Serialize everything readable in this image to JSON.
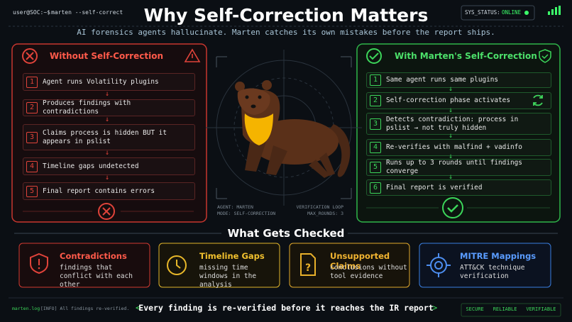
{
  "header": {
    "prompt": "user@SOC:~$",
    "command": "marten --self-correct",
    "title": "Why Self-Correction Matters",
    "status_label": "SYS_STATUS:",
    "status_value": "ONLINE",
    "subtitle": "AI forensics agents hallucinate. Marten catches its own mistakes before the report ships."
  },
  "left_panel": {
    "title": "Without Self-Correction",
    "steps": [
      {
        "number": "1",
        "text": "Agent runs Volatility plugins"
      },
      {
        "number": "2",
        "text": "Produces findings with contradictions"
      },
      {
        "number": "3",
        "text": "Claims process is hidden BUT it appears in pslist"
      },
      {
        "number": "4",
        "text": "Timeline gaps undetected"
      },
      {
        "number": "5",
        "text": "Final report contains errors"
      }
    ]
  },
  "right_panel": {
    "title": "With Marten's Self-Correction",
    "steps": [
      {
        "number": "1",
        "text": "Same agent runs same plugins"
      },
      {
        "number": "2",
        "text": "Self-correction phase activates"
      },
      {
        "number": "3",
        "text": "Detects contradiction: process in pslist → not truly hidden"
      },
      {
        "number": "4",
        "text": "Re-verifies with malfind + vadinfo"
      },
      {
        "number": "5",
        "text": "Runs up to 3 rounds until findings converge"
      },
      {
        "number": "6",
        "text": "Final report is verified"
      }
    ]
  },
  "center": {
    "agent": "AGENT: MARTEN",
    "mode": "MODE: SELF-CORRECTION",
    "loop": "VERIFICATION LOOP",
    "rounds": "MAX_ROUNDS: 3"
  },
  "checks": {
    "title": "What Gets Checked",
    "items": [
      {
        "title": "Contradictions",
        "description": "findings that conflict with each other"
      },
      {
        "title": "Timeline Gaps",
        "description": "missing time windows in the analysis"
      },
      {
        "title": "Unsupported Claims",
        "description": "conclusions without tool evidence"
      },
      {
        "title": "MITRE Mappings",
        "description": "ATT&CK technique verification"
      }
    ]
  },
  "footer": {
    "log_file": "marten.log",
    "log_info": "[INFO] All findings re-verified.",
    "tagline": "Every finding is re-verified before it reaches the IR report",
    "tags": [
      "SECURE",
      "RELIABLE",
      "VERIFIABLE"
    ]
  }
}
